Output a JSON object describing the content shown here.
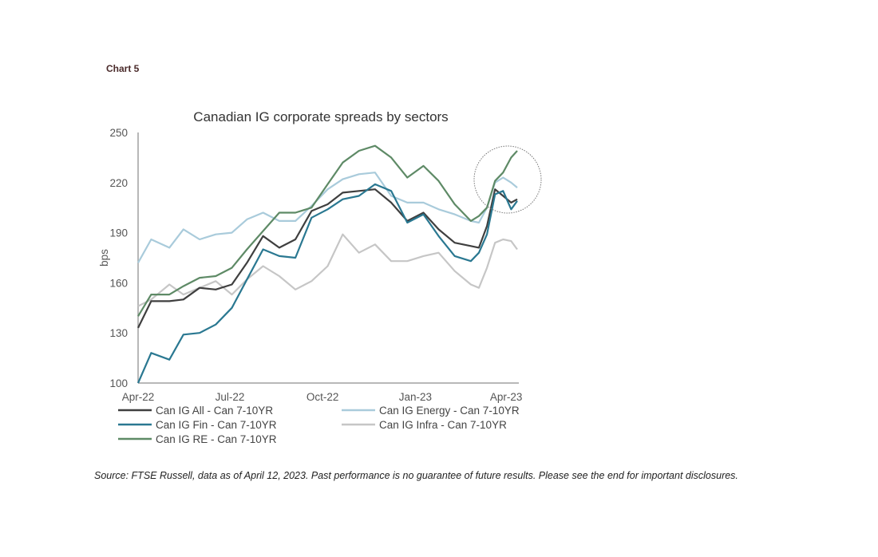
{
  "header": {
    "chart_label": "Chart 5"
  },
  "source": "Source: FTSE Russell, data as of April 12, 2023. Past performance is no guarantee of future results. Please see the end for important disclosures.",
  "chart_data": {
    "type": "line",
    "title": "Canadian IG corporate spreads by sectors",
    "xlabel": "",
    "ylabel": "bps",
    "ylim": [
      100,
      250
    ],
    "yticks": [
      100,
      130,
      160,
      190,
      220,
      250
    ],
    "xlim": [
      "2022-04-01",
      "2023-04-12"
    ],
    "xticks": [
      {
        "date": "2022-04-01",
        "label": "Apr-22"
      },
      {
        "date": "2022-07-01",
        "label": "Jul-22"
      },
      {
        "date": "2022-10-01",
        "label": "Oct-22"
      },
      {
        "date": "2023-01-01",
        "label": "Jan-23"
      },
      {
        "date": "2023-04-01",
        "label": "Apr-23"
      }
    ],
    "grid": false,
    "legend": "bottom",
    "annotation": "dotted circle around latest values (Mar-Apr 2023)",
    "x": [
      "2022-04-01",
      "2022-04-14",
      "2022-05-02",
      "2022-05-16",
      "2022-06-01",
      "2022-06-17",
      "2022-07-03",
      "2022-07-18",
      "2022-08-03",
      "2022-08-19",
      "2022-09-04",
      "2022-09-20",
      "2022-10-06",
      "2022-10-21",
      "2022-11-06",
      "2022-11-22",
      "2022-12-08",
      "2022-12-24",
      "2023-01-09",
      "2023-01-24",
      "2023-02-09",
      "2023-02-25",
      "2023-03-05",
      "2023-03-13",
      "2023-03-21",
      "2023-03-29",
      "2023-04-06",
      "2023-04-12"
    ],
    "series": [
      {
        "name": "Can IG All - Can 7-10YR",
        "color": "#3f3f3f",
        "values": [
          133,
          149,
          149,
          150,
          157,
          156,
          159,
          172,
          188,
          181,
          186,
          203,
          207,
          214,
          215,
          216,
          208,
          197,
          202,
          192,
          184,
          182,
          181,
          194,
          216,
          212,
          208,
          210
        ]
      },
      {
        "name": "Can IG Energy - Can 7-10YR",
        "color": "#a9cbdb",
        "values": [
          172,
          186,
          181,
          192,
          186,
          189,
          190,
          198,
          202,
          197,
          197,
          206,
          216,
          222,
          225,
          226,
          212,
          208,
          208,
          204,
          201,
          197,
          196,
          205,
          220,
          223,
          220,
          217
        ]
      },
      {
        "name": "Can IG Fin - Can 7-10YR",
        "color": "#2a7891",
        "values": [
          100,
          118,
          114,
          129,
          130,
          135,
          145,
          162,
          180,
          176,
          175,
          199,
          204,
          210,
          212,
          219,
          215,
          196,
          201,
          188,
          176,
          173,
          178,
          189,
          213,
          215,
          204,
          209
        ]
      },
      {
        "name": "Can IG Infra - Can 7-10YR",
        "color": "#c6c6c6",
        "values": [
          146,
          150,
          159,
          153,
          157,
          161,
          153,
          162,
          170,
          164,
          156,
          161,
          170,
          189,
          178,
          183,
          173,
          173,
          176,
          178,
          167,
          159,
          157,
          169,
          184,
          186,
          185,
          180
        ]
      },
      {
        "name": "Can IG RE - Can 7-10YR",
        "color": "#5e8a66",
        "values": [
          140,
          153,
          153,
          158,
          163,
          164,
          169,
          180,
          191,
          202,
          202,
          205,
          219,
          232,
          239,
          242,
          235,
          223,
          230,
          221,
          207,
          197,
          200,
          205,
          221,
          226,
          235,
          239
        ]
      }
    ]
  }
}
